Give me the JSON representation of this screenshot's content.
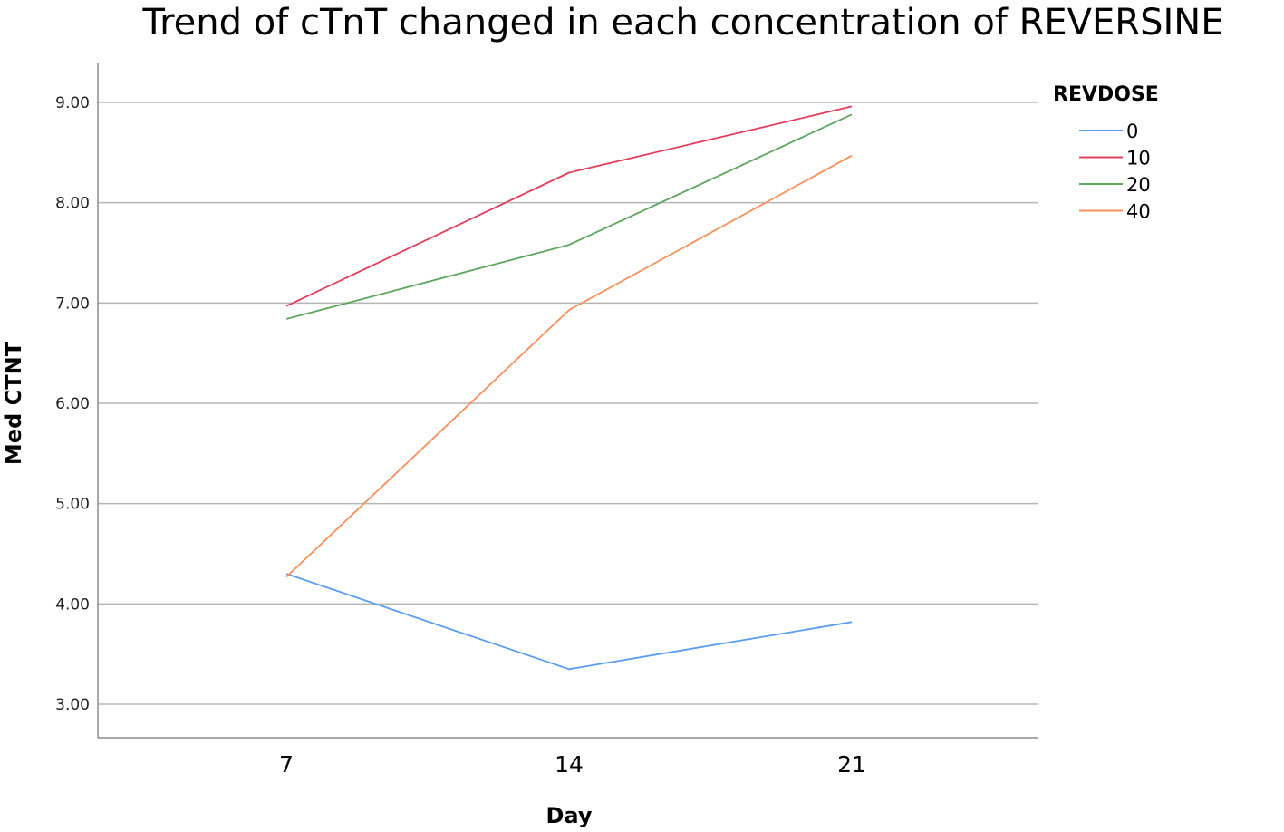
{
  "chart_data": {
    "type": "line",
    "title": "Trend of cTnT changed in each concentration of REVERSINE",
    "xlabel": "Day",
    "ylabel": "Med CTNT",
    "categories": [
      "7",
      "14",
      "21"
    ],
    "y_ticks": [
      "3.00",
      "4.00",
      "5.00",
      "6.00",
      "7.00",
      "8.00",
      "9.00"
    ],
    "ylim": [
      2.7,
      9.3
    ],
    "grid": true,
    "legend": {
      "title": "REVDOSE",
      "position": "top-right"
    },
    "series": [
      {
        "name": "0",
        "color": "#5b9bf0",
        "values": [
          4.3,
          3.35,
          3.82
        ]
      },
      {
        "name": "10",
        "color": "#e33d5c",
        "values": [
          6.97,
          8.3,
          8.96
        ]
      },
      {
        "name": "20",
        "color": "#5ea65e",
        "values": [
          6.84,
          7.58,
          8.88
        ]
      },
      {
        "name": "40",
        "color": "#f7905a",
        "values": [
          4.27,
          6.93,
          8.47
        ]
      }
    ]
  }
}
